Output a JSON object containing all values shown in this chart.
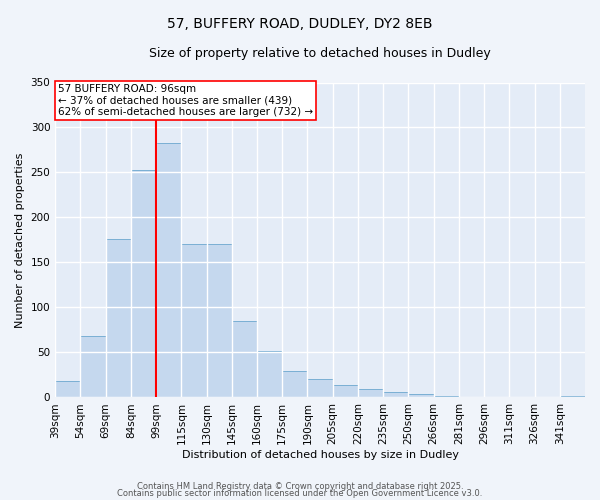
{
  "title_line1": "57, BUFFERY ROAD, DUDLEY, DY2 8EB",
  "title_line2": "Size of property relative to detached houses in Dudley",
  "xlabel": "Distribution of detached houses by size in Dudley",
  "ylabel": "Number of detached properties",
  "categories": [
    "39sqm",
    "54sqm",
    "69sqm",
    "84sqm",
    "99sqm",
    "115sqm",
    "130sqm",
    "145sqm",
    "160sqm",
    "175sqm",
    "190sqm",
    "205sqm",
    "220sqm",
    "235sqm",
    "250sqm",
    "266sqm",
    "281sqm",
    "296sqm",
    "311sqm",
    "326sqm",
    "341sqm"
  ],
  "counts": [
    18,
    68,
    176,
    253,
    283,
    170,
    170,
    85,
    52,
    29,
    20,
    14,
    9,
    6,
    4,
    2,
    1,
    1,
    0,
    0,
    2
  ],
  "bar_color": "#c5d8ee",
  "bar_edge_color": "#7aafd4",
  "vline_x": 4.0,
  "vline_color": "red",
  "ylim": [
    0,
    350
  ],
  "yticks": [
    0,
    50,
    100,
    150,
    200,
    250,
    300,
    350
  ],
  "annotation_text": "57 BUFFERY ROAD: 96sqm\n← 37% of detached houses are smaller (439)\n62% of semi-detached houses are larger (732) →",
  "annotation_box_color": "white",
  "annotation_box_edge": "red",
  "bg_color": "#f0f4fa",
  "plot_bg_color": "#e4ecf7",
  "grid_color": "white",
  "footer_line1": "Contains HM Land Registry data © Crown copyright and database right 2025.",
  "footer_line2": "Contains public sector information licensed under the Open Government Licence v3.0.",
  "title1_fontsize": 10,
  "title2_fontsize": 9,
  "ylabel_fontsize": 8,
  "xlabel_fontsize": 8,
  "tick_fontsize": 7.5,
  "annot_fontsize": 7.5,
  "footer_fontsize": 6
}
